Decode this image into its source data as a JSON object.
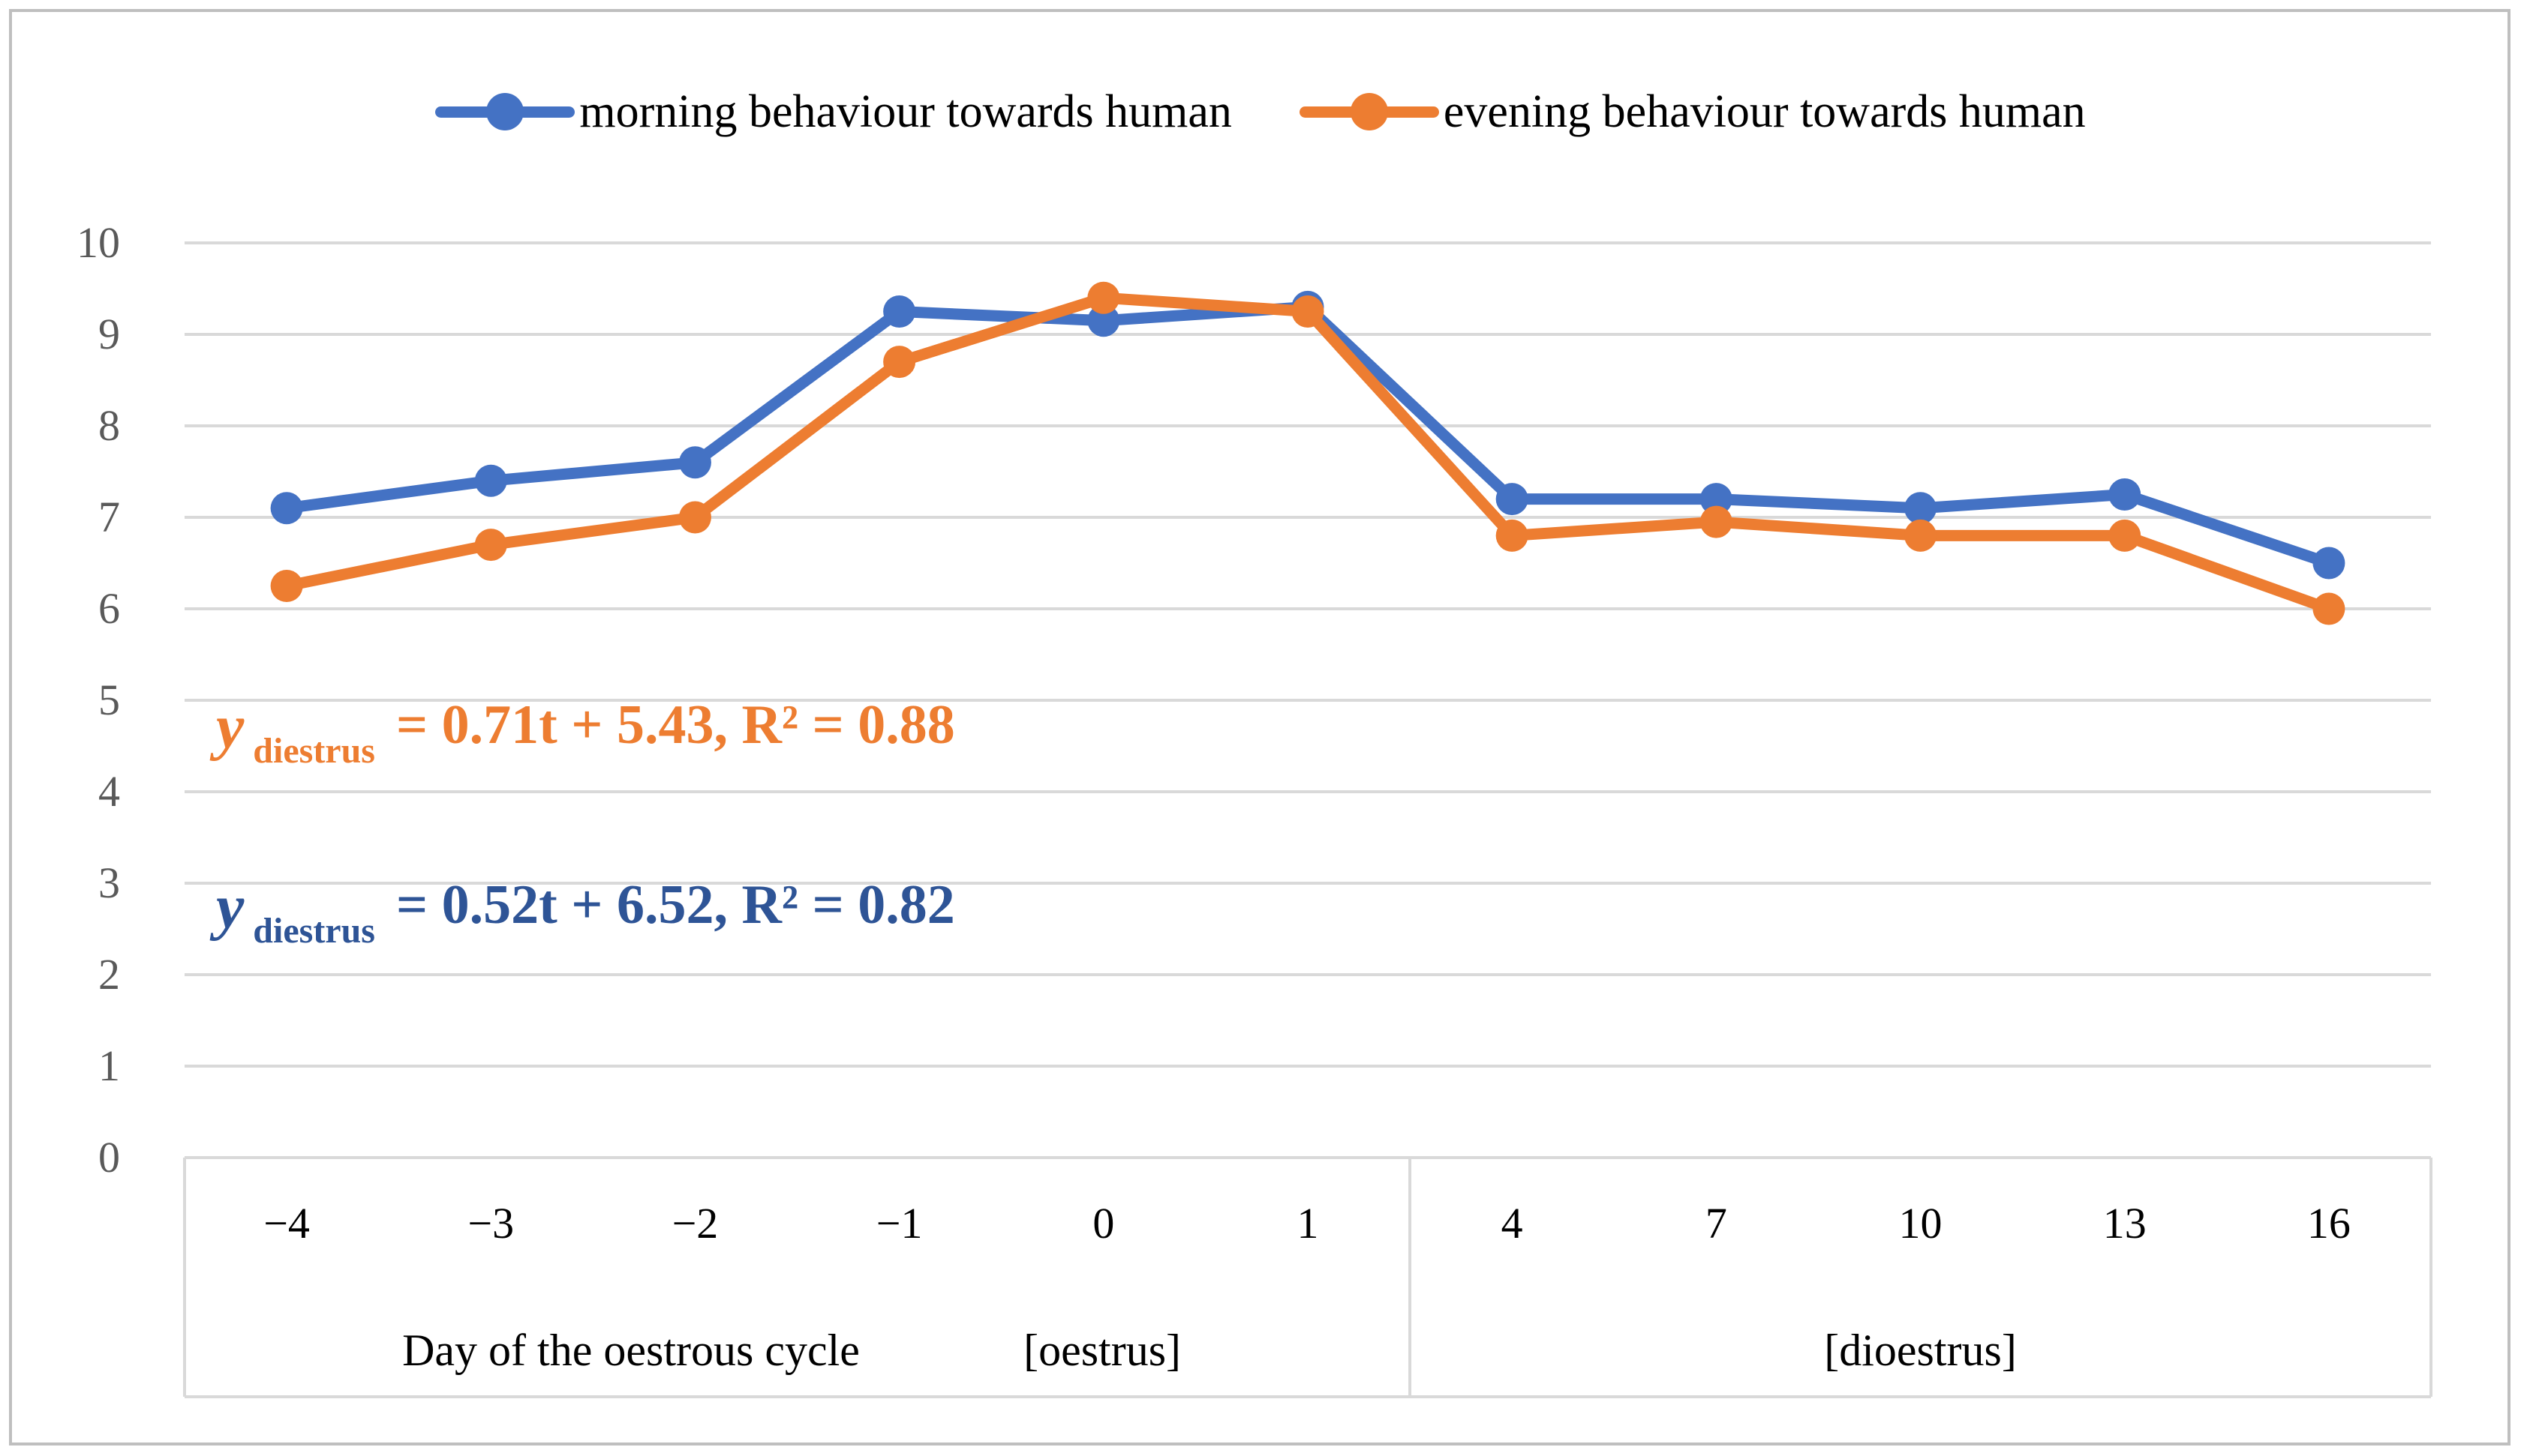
{
  "chart_data": {
    "type": "line",
    "title": "",
    "categories": [
      "−4",
      "−3",
      "−2",
      "−1",
      "0",
      "1",
      "4",
      "7",
      "10",
      "13",
      "16"
    ],
    "series": [
      {
        "name": "morning behaviour towards human",
        "color": "#4472c4",
        "values": [
          7.1,
          7.4,
          7.6,
          9.25,
          9.15,
          9.3,
          7.2,
          7.2,
          7.1,
          7.25,
          6.5
        ]
      },
      {
        "name": "evening behaviour towards human",
        "color": "#ed7d31",
        "values": [
          6.25,
          6.7,
          7.0,
          8.7,
          9.4,
          9.25,
          6.8,
          6.95,
          6.8,
          6.8,
          6.0
        ]
      }
    ],
    "ylim": [
      0,
      10
    ],
    "yticks": [
      0,
      1,
      2,
      3,
      4,
      5,
      6,
      7,
      8,
      9,
      10
    ],
    "grid": true,
    "legend_position": "top",
    "xaxis": {
      "group_split_index": 6,
      "group1_label": "Day of the oestrous cycle",
      "group1_tag": "[oestrus]",
      "group2_tag": "[dioestrus]"
    },
    "colors": {
      "gridline": "#d9d9d9",
      "axis_text": "#595959",
      "tick_text": "#000000",
      "frame": "#bfbfbf"
    }
  },
  "equations": [
    {
      "lead": "y",
      "sub": "diestrus",
      "rest": "= 0.71t + 5.43, R² = 0.88",
      "color": "#ed7d31"
    },
    {
      "lead": "y",
      "sub": "diestrus",
      "rest": "= 0.52t + 6.52, R² = 0.82",
      "color": "#2e5496"
    }
  ]
}
